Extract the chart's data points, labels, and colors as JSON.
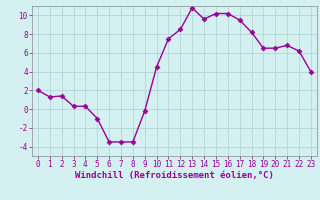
{
  "x": [
    0,
    1,
    2,
    3,
    4,
    5,
    6,
    7,
    8,
    9,
    10,
    11,
    12,
    13,
    14,
    15,
    16,
    17,
    18,
    19,
    20,
    21,
    22,
    23
  ],
  "y": [
    2,
    1.3,
    1.4,
    0.3,
    0.3,
    -1.0,
    -3.5,
    -3.5,
    -3.5,
    -0.2,
    4.5,
    7.5,
    8.5,
    10.8,
    9.6,
    10.2,
    10.2,
    9.5,
    8.2,
    6.5,
    6.5,
    6.8,
    6.2,
    4.0
  ],
  "line_color": "#990099",
  "marker": "D",
  "markersize": 2.5,
  "linewidth": 1.0,
  "xlabel": "Windchill (Refroidissement éolien,°C)",
  "xlim": [
    -0.5,
    23.5
  ],
  "ylim": [
    -5,
    11
  ],
  "yticks": [
    -4,
    -2,
    0,
    2,
    4,
    6,
    8,
    10
  ],
  "xticks": [
    0,
    1,
    2,
    3,
    4,
    5,
    6,
    7,
    8,
    9,
    10,
    11,
    12,
    13,
    14,
    15,
    16,
    17,
    18,
    19,
    20,
    21,
    22,
    23
  ],
  "bg_color": "#d5f0f0",
  "grid_color": "#b0d8d8",
  "spine_color": "#888888",
  "tick_color": "#990099",
  "xlabel_fontsize": 6.5,
  "tick_fontsize": 5.5
}
